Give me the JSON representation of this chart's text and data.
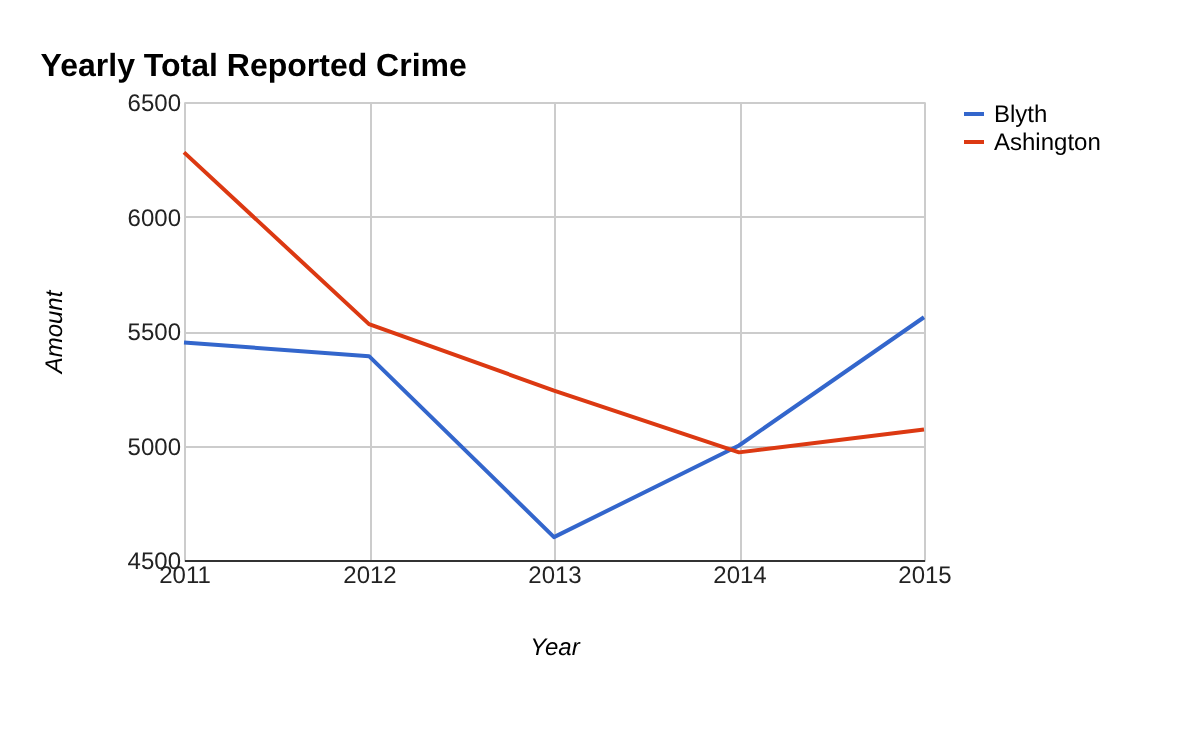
{
  "chart_data": {
    "type": "line",
    "title": "Yearly Total Reported Crime",
    "xlabel": "Year",
    "ylabel": "Amount",
    "x": [
      2011,
      2012,
      2013,
      2014,
      2015
    ],
    "series": [
      {
        "name": "Blyth",
        "color": "#3366cc",
        "values": [
          5450,
          5390,
          4600,
          5000,
          5560
        ]
      },
      {
        "name": "Ashington",
        "color": "#dc3912",
        "values": [
          6280,
          5530,
          5240,
          4970,
          5070
        ]
      }
    ],
    "xlim": [
      2011,
      2015
    ],
    "xticks": [
      2011,
      2012,
      2013,
      2014,
      2015
    ],
    "ylim": [
      4500,
      6500
    ],
    "yticks": [
      4500,
      5000,
      5500,
      6000,
      6500
    ],
    "grid": true,
    "legend": "top right",
    "marker": "none",
    "line_style": "solid"
  }
}
